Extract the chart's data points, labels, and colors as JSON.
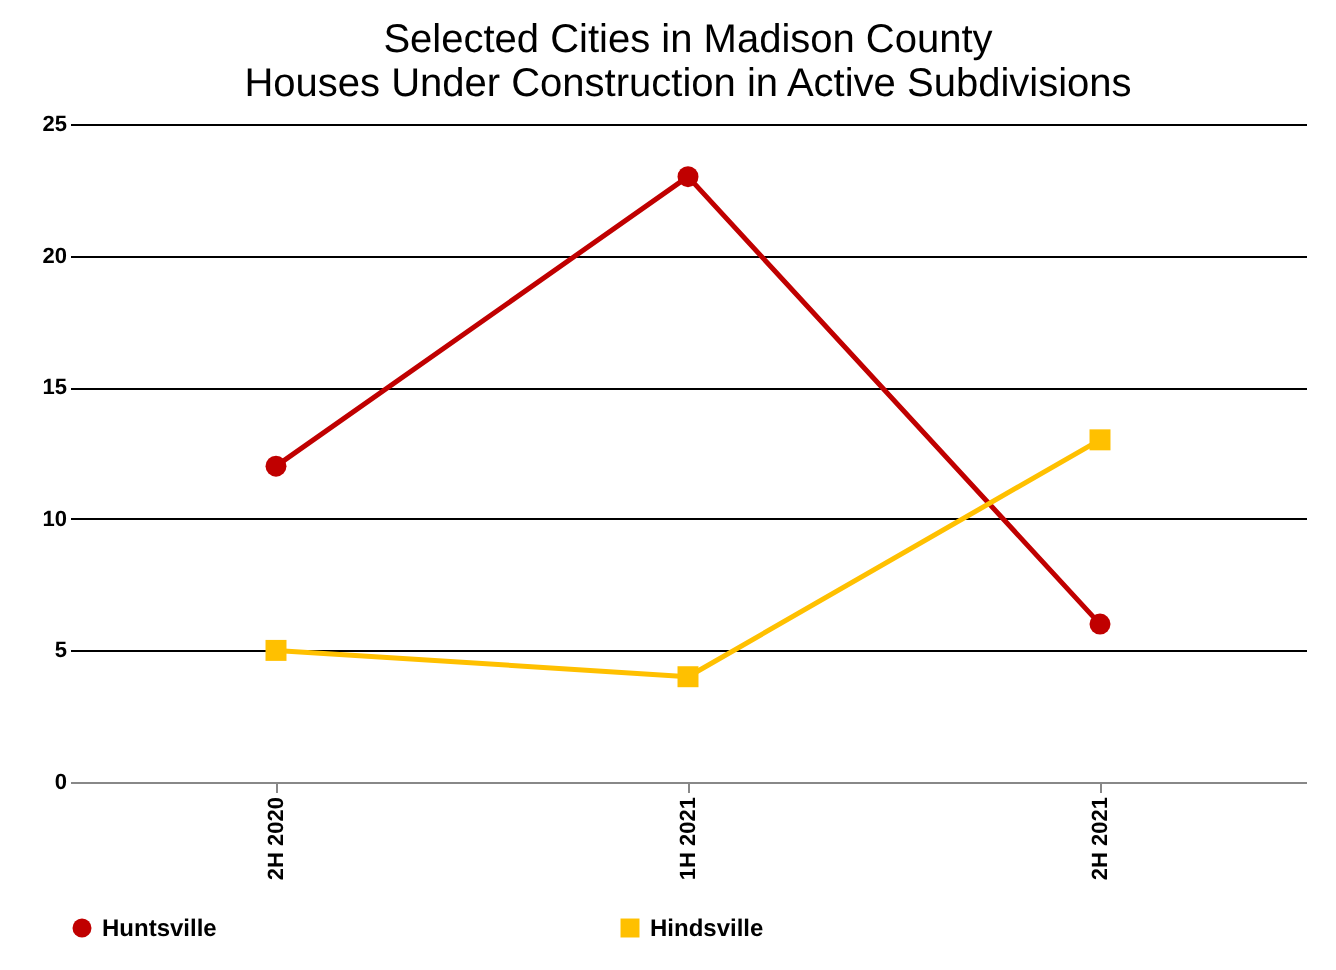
{
  "chart_data": {
    "type": "line",
    "title": [
      "Selected Cities in Madison County",
      "Houses Under Construction in Active Subdivisions"
    ],
    "categories": [
      "2H 2020",
      "1H 2021",
      "2H 2021"
    ],
    "series": [
      {
        "name": "Huntsville",
        "color": "#c00000",
        "marker": "circle",
        "values": [
          12,
          23,
          6
        ]
      },
      {
        "name": "Hindsville",
        "color": "#ffc000",
        "marker": "square",
        "values": [
          5,
          4,
          13
        ]
      }
    ],
    "ylim": [
      0,
      25
    ],
    "yticks": [
      0,
      5,
      10,
      15,
      20,
      25
    ],
    "grid": "y",
    "legend": "bottom",
    "line_style": "solid"
  }
}
